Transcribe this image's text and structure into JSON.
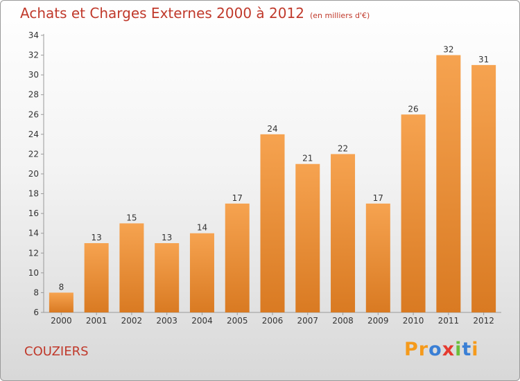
{
  "chart_data": {
    "type": "bar",
    "title": "Achats et Charges Externes 2000 à 2012",
    "subtitle": "(en milliers d'€)",
    "categories": [
      "2000",
      "2001",
      "2002",
      "2003",
      "2004",
      "2005",
      "2006",
      "2007",
      "2008",
      "2009",
      "2010",
      "2011",
      "2012"
    ],
    "values": [
      8,
      13,
      15,
      13,
      14,
      17,
      24,
      21,
      22,
      17,
      26,
      32,
      31
    ],
    "ylim": [
      6,
      34
    ],
    "yticks": [
      6,
      8,
      10,
      12,
      14,
      16,
      18,
      20,
      22,
      24,
      26,
      28,
      30,
      32,
      34
    ],
    "grid": false,
    "bar_color_light": "#f6a350",
    "bar_color_dark": "#d97a22"
  },
  "footer": {
    "city": "COUZIERS",
    "logo": "Proxiti"
  },
  "colors": {
    "title": "#c0392b",
    "logo_letters": [
      "#f59a1b",
      "#f59a1b",
      "#3a7fd5",
      "#e53a2f",
      "#6bbf3a",
      "#3a7fd5",
      "#f59a1b"
    ]
  }
}
